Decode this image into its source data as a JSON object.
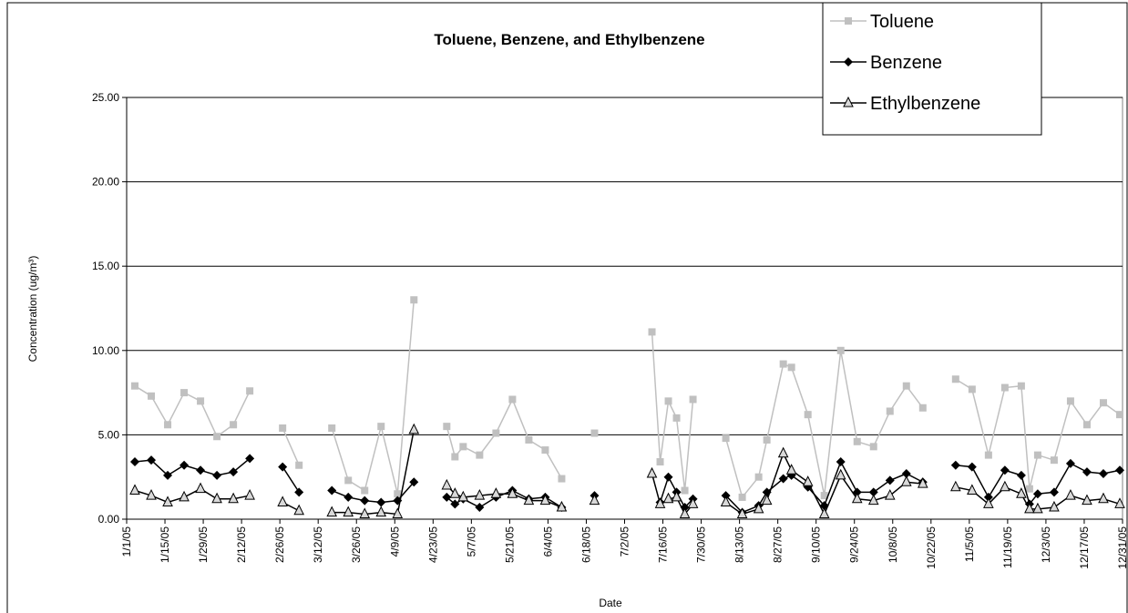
{
  "chart_data": {
    "type": "line",
    "title": "Toluene, Benzene, and Ethylbenzene",
    "x_label": "Date",
    "y_label": "Concentration (ug/m³)",
    "x": [
      "1/4/05",
      "1/10/05",
      "1/16/05",
      "1/22/05",
      "1/28/05",
      "2/3/05",
      "2/9/05",
      "2/15/05",
      "2/21/05",
      "2/27/05",
      "3/5/05",
      "3/11/05",
      "3/17/05",
      "3/23/05",
      "3/29/05",
      "4/4/05",
      "4/10/05",
      "4/16/05",
      "4/22/05",
      "4/28/05",
      "5/1/05",
      "5/4/05",
      "5/10/05",
      "5/16/05",
      "5/22/05",
      "5/28/05",
      "6/3/05",
      "6/9/05",
      "6/15/05",
      "6/21/05",
      "6/27/05",
      "7/12/05",
      "7/15/05",
      "7/18/05",
      "7/21/05",
      "7/24/05",
      "7/27/05",
      "8/2/05",
      "8/8/05",
      "8/14/05",
      "8/20/05",
      "8/23/05",
      "8/29/05",
      "9/1/05",
      "9/7/05",
      "9/13/05",
      "9/19/05",
      "9/25/05",
      "10/1/05",
      "10/7/05",
      "10/13/05",
      "10/19/05",
      "10/25/05",
      "10/31/05",
      "11/6/05",
      "11/12/05",
      "11/18/05",
      "11/24/05",
      "11/27/05",
      "11/30/05",
      "12/6/05",
      "12/12/05",
      "12/18/05",
      "12/24/05",
      "12/30/05"
    ],
    "series": [
      {
        "name": "Toluene",
        "color": "#c0c0c0",
        "marker": "square",
        "values": [
          7.9,
          7.3,
          5.6,
          7.5,
          7.0,
          4.9,
          5.6,
          7.6,
          null,
          5.4,
          3.2,
          null,
          5.4,
          2.3,
          1.7,
          5.5,
          1.5,
          13.0,
          null,
          5.5,
          3.7,
          4.3,
          3.8,
          5.1,
          7.1,
          4.7,
          4.1,
          2.4,
          null,
          5.1,
          null,
          11.1,
          3.4,
          7.0,
          6.0,
          1.7,
          7.1,
          null,
          4.8,
          1.3,
          2.5,
          4.7,
          9.2,
          9.0,
          6.2,
          1.4,
          10.0,
          4.6,
          4.3,
          6.4,
          7.9,
          6.6,
          null,
          8.3,
          7.7,
          3.8,
          7.8,
          7.9,
          1.8,
          3.8,
          3.5,
          7.0,
          5.6,
          6.9,
          6.2
        ]
      },
      {
        "name": "Benzene",
        "color": "#000000",
        "marker": "diamond",
        "values": [
          3.4,
          3.5,
          2.6,
          3.2,
          2.9,
          2.6,
          2.8,
          3.6,
          null,
          3.1,
          1.6,
          null,
          1.7,
          1.3,
          1.1,
          1.0,
          1.1,
          2.2,
          null,
          1.3,
          0.9,
          1.2,
          0.7,
          1.3,
          1.7,
          1.2,
          1.3,
          0.7,
          null,
          1.4,
          null,
          null,
          1.0,
          2.5,
          1.6,
          0.7,
          1.2,
          null,
          1.4,
          0.4,
          0.8,
          1.6,
          2.4,
          2.6,
          1.9,
          0.8,
          3.4,
          1.6,
          1.6,
          2.3,
          2.7,
          2.2,
          null,
          3.2,
          3.1,
          1.3,
          2.9,
          2.6,
          0.9,
          1.5,
          1.6,
          3.3,
          2.8,
          2.7,
          2.9
        ]
      },
      {
        "name": "Ethylbenzene",
        "color": "#000000",
        "marker": "triangle",
        "values": [
          1.7,
          1.4,
          1.0,
          1.3,
          1.8,
          1.2,
          1.2,
          1.4,
          null,
          1.0,
          0.5,
          null,
          0.4,
          0.4,
          0.3,
          0.4,
          0.3,
          5.3,
          null,
          2.0,
          1.5,
          1.3,
          1.4,
          1.5,
          1.5,
          1.1,
          1.1,
          0.7,
          null,
          1.1,
          null,
          2.7,
          0.9,
          1.2,
          1.3,
          0.3,
          0.9,
          null,
          1.0,
          0.3,
          0.6,
          1.1,
          3.9,
          2.9,
          2.2,
          0.3,
          2.6,
          1.2,
          1.1,
          1.4,
          2.2,
          2.1,
          null,
          1.9,
          1.7,
          0.9,
          1.9,
          1.5,
          0.6,
          0.6,
          0.7,
          1.4,
          1.1,
          1.2,
          0.9
        ]
      }
    ],
    "xlim": [
      "1/1/05",
      "12/31/05"
    ],
    "xticks": [
      "1/1/05",
      "1/15/05",
      "1/29/05",
      "2/12/05",
      "2/26/05",
      "3/12/05",
      "3/26/05",
      "4/9/05",
      "4/23/05",
      "5/7/05",
      "5/21/05",
      "6/4/05",
      "6/18/05",
      "7/2/05",
      "7/16/05",
      "7/30/05",
      "8/13/05",
      "8/27/05",
      "9/10/05",
      "9/24/05",
      "10/8/05",
      "10/22/05",
      "11/5/05",
      "11/19/05",
      "12/3/05",
      "12/17/05",
      "12/31/05"
    ],
    "ylim": [
      0,
      25
    ],
    "yticks": [
      {
        "value": 0,
        "label": "0.00"
      },
      {
        "value": 5,
        "label": "5.00"
      },
      {
        "value": 10,
        "label": "10.00"
      },
      {
        "value": 15,
        "label": "15.00"
      },
      {
        "value": 20,
        "label": "20.00"
      },
      {
        "value": 25,
        "label": "25.00"
      }
    ],
    "grid": true,
    "legend": "top-right"
  }
}
